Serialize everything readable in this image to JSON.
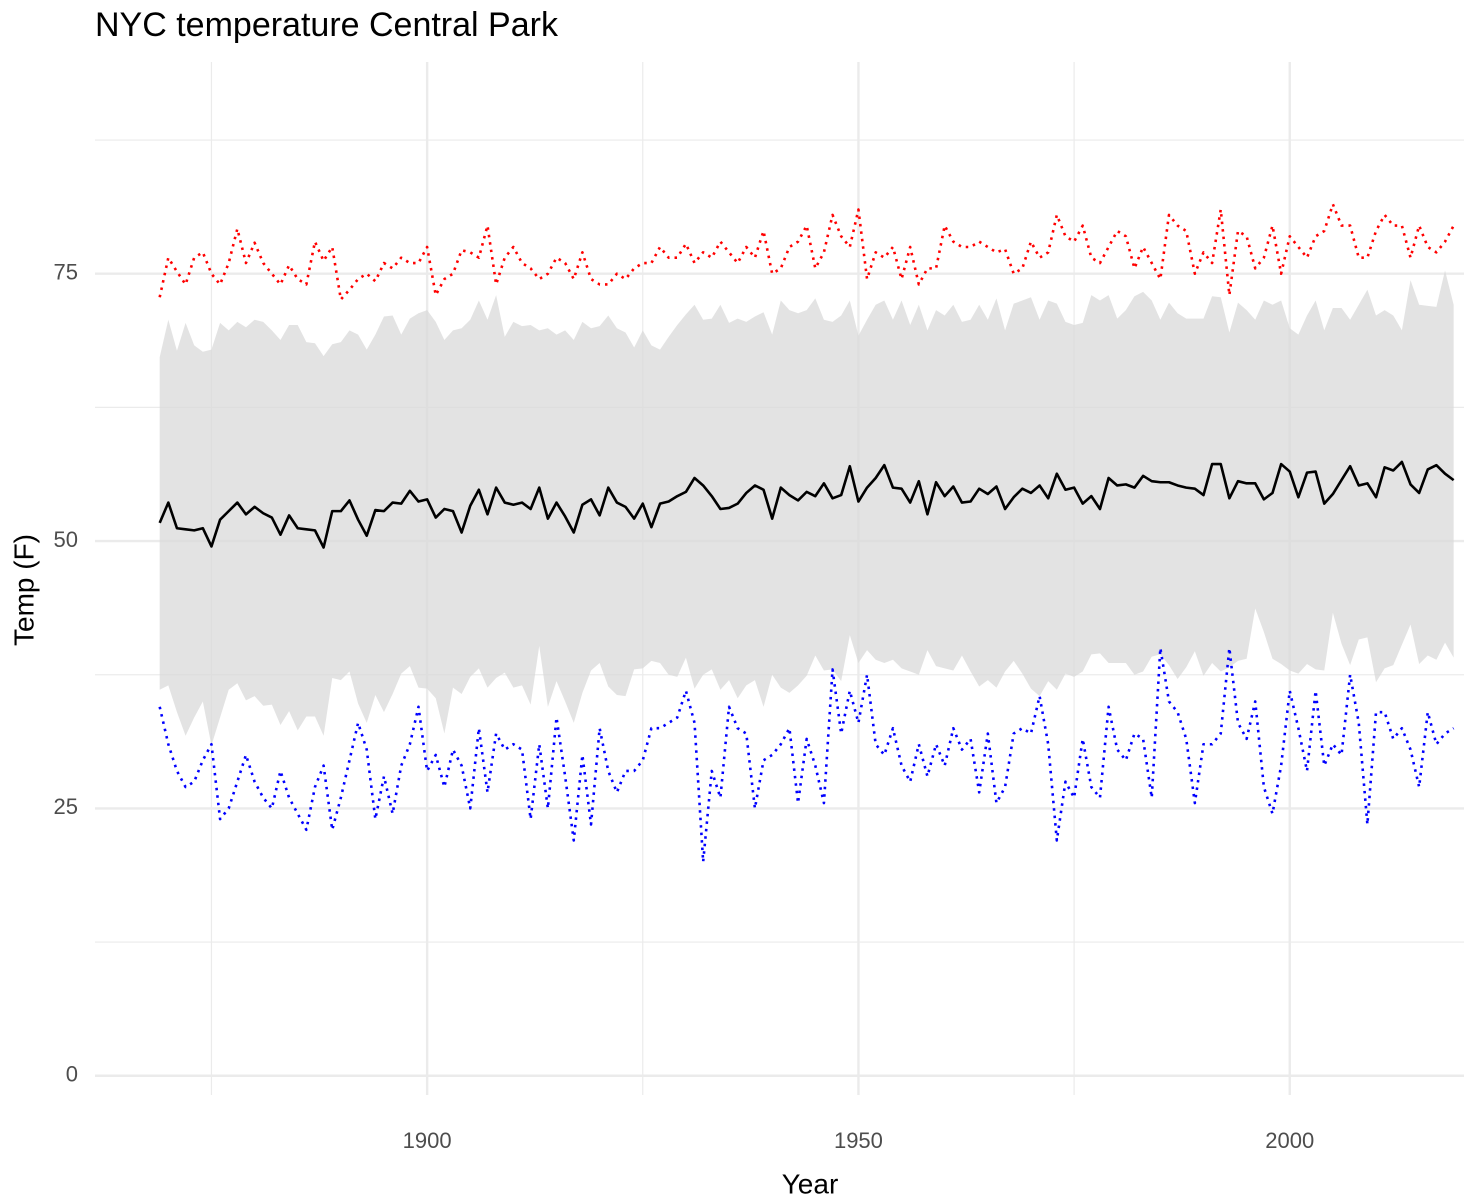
{
  "chart_data": {
    "type": "line",
    "title": "NYC temperature Central Park",
    "x_label": "Year",
    "y_label": "Temp (F)",
    "xlim": [
      1861.5,
      2020.2
    ],
    "ylim": [
      -1.8,
      94.8
    ],
    "xticks": [
      1900,
      1950,
      2000
    ],
    "yticks": [
      0,
      25,
      50,
      75
    ],
    "xminorticks": [
      1875,
      1925,
      1975
    ],
    "yminorticks": [
      12.5,
      37.5,
      62.5,
      87.5
    ],
    "grid": true,
    "x": [
      1869,
      1870,
      1871,
      1872,
      1873,
      1874,
      1875,
      1876,
      1877,
      1878,
      1879,
      1880,
      1881,
      1882,
      1883,
      1884,
      1885,
      1886,
      1887,
      1888,
      1889,
      1890,
      1891,
      1892,
      1893,
      1894,
      1895,
      1896,
      1897,
      1898,
      1899,
      1900,
      1901,
      1902,
      1903,
      1904,
      1905,
      1906,
      1907,
      1908,
      1909,
      1910,
      1911,
      1912,
      1913,
      1914,
      1915,
      1916,
      1917,
      1918,
      1919,
      1920,
      1921,
      1922,
      1923,
      1924,
      1925,
      1926,
      1927,
      1928,
      1929,
      1930,
      1931,
      1932,
      1933,
      1934,
      1935,
      1936,
      1937,
      1938,
      1939,
      1940,
      1941,
      1942,
      1943,
      1944,
      1945,
      1946,
      1947,
      1948,
      1949,
      1950,
      1951,
      1952,
      1953,
      1954,
      1955,
      1956,
      1957,
      1958,
      1959,
      1960,
      1961,
      1962,
      1963,
      1964,
      1965,
      1966,
      1967,
      1968,
      1969,
      1970,
      1971,
      1972,
      1973,
      1974,
      1975,
      1976,
      1977,
      1978,
      1979,
      1980,
      1981,
      1982,
      1983,
      1984,
      1985,
      1986,
      1987,
      1988,
      1989,
      1990,
      1991,
      1992,
      1993,
      1994,
      1995,
      1996,
      1997,
      1998,
      1999,
      2000,
      2001,
      2002,
      2003,
      2004,
      2005,
      2006,
      2007,
      2008,
      2009,
      2010,
      2011,
      2012,
      2013,
      2014,
      2015,
      2016,
      2017,
      2018,
      2019
    ],
    "ribbon": {
      "color": "#d9d9d9",
      "upper": [
        67.2,
        70.7,
        67.8,
        70.4,
        68.3,
        67.7,
        67.9,
        70.4,
        69.7,
        70.5,
        70.0,
        70.7,
        70.5,
        69.7,
        68.8,
        70.2,
        70.2,
        68.6,
        68.5,
        67.3,
        68.4,
        68.6,
        69.7,
        69.3,
        67.9,
        69.3,
        71.0,
        71.1,
        69.3,
        70.8,
        71.3,
        71.6,
        70.5,
        68.8,
        69.7,
        69.9,
        70.7,
        72.5,
        70.7,
        73.0,
        69.1,
        70.5,
        70.1,
        70.2,
        69.7,
        69.9,
        69.3,
        69.7,
        68.8,
        70.5,
        69.9,
        70.1,
        71.1,
        69.9,
        69.5,
        68.1,
        69.7,
        68.3,
        67.9,
        69.1,
        70.2,
        71.2,
        72.1,
        70.7,
        70.8,
        72.1,
        70.4,
        70.8,
        70.5,
        71.0,
        71.4,
        69.3,
        72.5,
        71.6,
        71.3,
        71.6,
        72.7,
        70.7,
        70.5,
        71.1,
        72.5,
        69.2,
        70.7,
        72.1,
        72.5,
        70.7,
        72.5,
        70.2,
        72.1,
        69.7,
        71.6,
        71.1,
        72.1,
        70.5,
        70.7,
        72.1,
        70.7,
        72.7,
        69.7,
        72.2,
        72.5,
        72.8,
        70.7,
        72.5,
        72.2,
        70.5,
        70.2,
        70.4,
        73.0,
        72.5,
        73.0,
        70.8,
        71.6,
        72.9,
        73.3,
        72.5,
        70.7,
        72.3,
        71.3,
        70.8,
        70.8,
        70.8,
        72.9,
        72.8,
        69.5,
        72.3,
        71.6,
        70.7,
        72.5,
        72.1,
        72.5,
        69.9,
        69.3,
        71.1,
        72.5,
        69.7,
        71.8,
        71.8,
        70.7,
        72.1,
        73.5,
        71.1,
        71.6,
        71.1,
        69.7,
        74.4,
        72.1,
        72.0,
        71.9,
        75.3,
        72.1
      ],
      "lower": [
        36.1,
        36.5,
        34.0,
        31.8,
        33.5,
        35.0,
        30.9,
        33.5,
        36.1,
        36.7,
        35.1,
        35.5,
        34.6,
        34.7,
        32.8,
        34.1,
        32.3,
        33.6,
        33.6,
        31.8,
        37.2,
        37.0,
        37.8,
        34.8,
        33.0,
        35.6,
        34.0,
        35.7,
        37.6,
        38.3,
        36.3,
        36.2,
        35.3,
        32.0,
        36.3,
        35.7,
        37.3,
        38.1,
        36.3,
        37.2,
        37.7,
        36.3,
        36.5,
        34.7,
        40.2,
        34.5,
        36.9,
        35.0,
        33.0,
        35.8,
        37.9,
        38.6,
        36.4,
        35.6,
        35.5,
        38.0,
        38.1,
        38.8,
        38.6,
        37.5,
        37.3,
        39.1,
        36.2,
        37.5,
        38.0,
        36.1,
        37.0,
        35.3,
        36.5,
        37.0,
        34.5,
        37.5,
        36.3,
        35.8,
        36.5,
        37.4,
        39.3,
        37.9,
        38.0,
        36.9,
        41.2,
        38.6,
        39.8,
        38.9,
        38.6,
        38.9,
        38.1,
        37.8,
        37.5,
        39.8,
        38.3,
        38.1,
        37.9,
        39.3,
        37.8,
        36.4,
        37.0,
        36.3,
        37.8,
        38.8,
        37.6,
        36.2,
        35.5,
        36.9,
        36.1,
        37.6,
        37.3,
        37.8,
        39.4,
        39.5,
        38.6,
        38.6,
        38.6,
        37.5,
        37.8,
        39.2,
        39.4,
        38.4,
        37.1,
        38.2,
        39.7,
        37.4,
        38.6,
        37.8,
        38.2,
        38.8,
        39.0,
        43.7,
        41.5,
        39.0,
        38.5,
        37.9,
        37.6,
        38.5,
        38.0,
        37.9,
        43.3,
        40.4,
        38.4,
        40.8,
        41.0,
        36.8,
        38.1,
        38.4,
        40.3,
        42.2,
        38.5,
        39.3,
        38.9,
        40.5,
        39.1
      ]
    },
    "series": [
      {
        "color": "#000000",
        "dotted": false,
        "values": [
          51.7,
          53.6,
          51.2,
          51.1,
          51.0,
          51.2,
          49.5,
          52.0,
          52.8,
          53.6,
          52.5,
          53.2,
          52.6,
          52.2,
          50.6,
          52.4,
          51.2,
          51.1,
          51.0,
          49.4,
          52.8,
          52.8,
          53.8,
          52.0,
          50.5,
          52.9,
          52.8,
          53.6,
          53.5,
          54.7,
          53.7,
          53.9,
          52.2,
          53.0,
          52.8,
          50.8,
          53.3,
          54.8,
          52.5,
          55.0,
          53.6,
          53.4,
          53.6,
          53.0,
          55.0,
          52.1,
          53.6,
          52.3,
          50.8,
          53.4,
          53.9,
          52.4,
          55.0,
          53.6,
          53.2,
          52.1,
          53.5,
          51.3,
          53.5,
          53.7,
          54.2,
          54.6,
          55.9,
          55.2,
          54.2,
          53.0,
          53.1,
          53.5,
          54.5,
          55.2,
          54.8,
          52.1,
          55.0,
          54.3,
          53.8,
          54.6,
          54.2,
          55.4,
          54.0,
          54.3,
          57.0,
          53.7,
          55.0,
          55.9,
          57.1,
          55.0,
          54.9,
          53.6,
          55.6,
          52.5,
          55.5,
          54.2,
          55.1,
          53.6,
          53.7,
          54.9,
          54.4,
          55.1,
          53.0,
          54.1,
          54.9,
          54.5,
          55.2,
          54.0,
          56.3,
          54.8,
          55.0,
          53.5,
          54.2,
          53.0,
          55.9,
          55.2,
          55.3,
          55.0,
          56.1,
          55.6,
          55.5,
          55.5,
          55.2,
          55.0,
          54.9,
          54.3,
          57.2,
          57.2,
          54.0,
          55.6,
          55.4,
          55.4,
          53.9,
          54.5,
          57.2,
          56.5,
          54.1,
          56.4,
          56.5,
          53.5,
          54.4,
          55.7,
          57.0,
          55.2,
          55.4,
          54.1,
          56.9,
          56.6,
          57.4,
          55.3,
          54.5,
          56.7,
          57.1,
          56.3,
          55.7
        ]
      },
      {
        "color": "#ff0000",
        "dotted": true,
        "values": [
          72.8,
          76.5,
          75.2,
          74.0,
          76.5,
          77.0,
          75.0,
          74.0,
          76.0,
          79.2,
          76.0,
          77.9,
          76.0,
          75.0,
          74.0,
          75.8,
          74.5,
          74.0,
          78.0,
          76.2,
          77.5,
          72.6,
          73.5,
          74.5,
          75.0,
          74.3,
          76.0,
          75.5,
          76.5,
          76.0,
          76.0,
          77.5,
          73.0,
          74.5,
          75.0,
          77.2,
          77.0,
          76.5,
          79.5,
          74.0,
          76.5,
          77.5,
          76.0,
          75.5,
          74.5,
          75.0,
          76.5,
          76.0,
          74.5,
          77.0,
          74.5,
          74.0,
          74.0,
          75.0,
          74.5,
          75.5,
          76.0,
          76.0,
          77.5,
          76.5,
          76.5,
          77.8,
          76.0,
          77.0,
          76.5,
          78.0,
          77.0,
          76.0,
          77.5,
          76.5,
          79.0,
          75.0,
          75.5,
          77.5,
          78.0,
          79.5,
          75.5,
          77.0,
          80.5,
          78.5,
          77.5,
          81.0,
          74.5,
          77.0,
          76.5,
          77.5,
          74.5,
          77.5,
          74.0,
          75.5,
          75.5,
          79.5,
          78.0,
          77.5,
          77.5,
          78.0,
          77.5,
          77.0,
          77.3,
          75.0,
          75.5,
          78.0,
          76.5,
          77.0,
          80.5,
          78.5,
          78.0,
          79.5,
          76.5,
          76.0,
          77.5,
          79.0,
          78.5,
          75.5,
          77.5,
          76.0,
          74.5,
          80.5,
          79.5,
          79.0,
          75.0,
          77.0,
          76.0,
          81.0,
          73.0,
          79.0,
          78.5,
          75.5,
          76.5,
          79.5,
          75.0,
          78.5,
          77.5,
          76.5,
          78.5,
          79.0,
          81.5,
          79.5,
          79.5,
          76.5,
          76.5,
          79.0,
          80.5,
          79.5,
          79.5,
          76.5,
          79.5,
          77.5,
          77.0,
          78.0,
          79.5
        ]
      },
      {
        "color": "#0000ff",
        "dotted": true,
        "values": [
          34.5,
          31.0,
          28.5,
          27.0,
          27.5,
          29.5,
          31.0,
          24.0,
          25.0,
          27.5,
          30.0,
          27.5,
          26.0,
          25.0,
          28.5,
          26.0,
          24.5,
          23.0,
          27.0,
          29.0,
          23.0,
          26.0,
          29.5,
          33.0,
          30.5,
          24.0,
          28.0,
          24.5,
          29.0,
          31.0,
          34.5,
          28.5,
          30.0,
          27.0,
          30.5,
          29.0,
          25.0,
          32.5,
          26.5,
          32.0,
          30.5,
          31.0,
          30.5,
          24.0,
          31.0,
          25.0,
          33.5,
          28.0,
          22.0,
          30.0,
          23.5,
          32.5,
          28.5,
          26.5,
          28.5,
          28.5,
          29.5,
          32.5,
          32.5,
          33.0,
          33.5,
          36.0,
          33.0,
          20.0,
          28.5,
          26.0,
          34.5,
          32.5,
          32.0,
          25.0,
          29.5,
          30.0,
          31.0,
          32.5,
          25.5,
          31.5,
          29.0,
          25.5,
          38.0,
          32.0,
          36.0,
          33.0,
          37.5,
          31.0,
          30.0,
          32.5,
          29.0,
          27.5,
          31.0,
          28.0,
          31.0,
          29.0,
          32.5,
          30.5,
          31.5,
          26.5,
          32.0,
          25.5,
          27.0,
          32.0,
          32.5,
          32.0,
          35.5,
          31.0,
          22.0,
          27.5,
          26.0,
          31.5,
          27.0,
          26.0,
          34.5,
          30.5,
          29.5,
          32.0,
          31.5,
          26.0,
          40.0,
          35.0,
          34.0,
          31.5,
          25.5,
          31.0,
          31.0,
          32.0,
          40.0,
          33.0,
          31.5,
          35.0,
          27.0,
          24.5,
          29.0,
          36.0,
          32.5,
          28.5,
          36.0,
          29.0,
          31.0,
          30.0,
          37.5,
          33.0,
          23.5,
          34.0,
          34.0,
          31.5,
          32.5,
          30.5,
          27.0,
          34.0,
          31.0,
          32.0,
          32.5
        ]
      }
    ]
  }
}
